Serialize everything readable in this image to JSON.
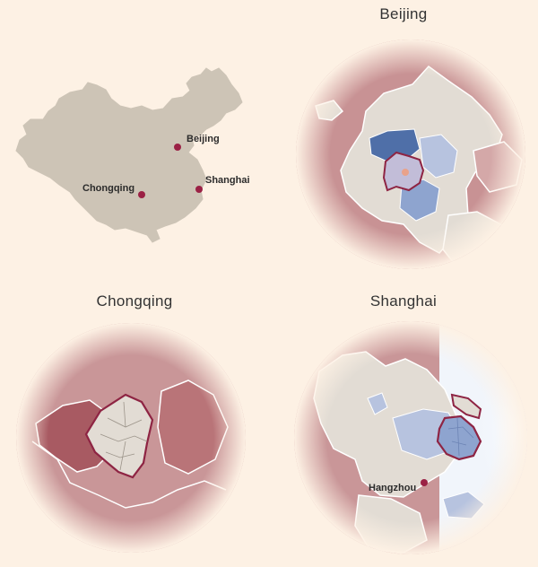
{
  "overview": {
    "cities": [
      {
        "name": "Beijing"
      },
      {
        "name": "Shanghai"
      },
      {
        "name": "Chongqing"
      }
    ]
  },
  "panels": {
    "beijing": {
      "title": "Beijing"
    },
    "chongqing": {
      "title": "Chongqing"
    },
    "shanghai": {
      "title": "Shanghai",
      "label": "Hangzhou"
    }
  },
  "colors": {
    "background": "#fdf1e4",
    "land": "#cdc4b6",
    "region_fill": "#e2dcd4",
    "dark_red": "#a85a62",
    "city_outline": "#8e2443",
    "marker": "#9b2145",
    "blue_dark": "#4f6fa8",
    "blue_mid": "#8ea4cf",
    "blue_light": "#b7c3df"
  }
}
